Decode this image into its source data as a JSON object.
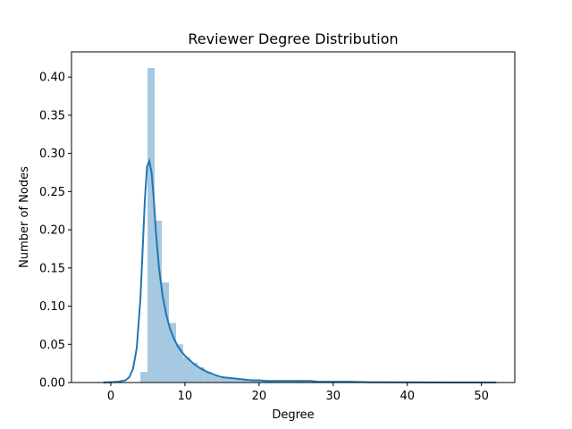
{
  "chart_data": {
    "type": "bar",
    "title": "Reviewer Degree Distribution",
    "xlabel": "Degree",
    "ylabel": "Number of Nodes",
    "xlim": [
      -5.3,
      54.5
    ],
    "ylim": [
      0,
      0.433
    ],
    "x_ticks": [
      0,
      10,
      20,
      30,
      40,
      50
    ],
    "y_ticks": [
      0.0,
      0.05,
      0.1,
      0.15,
      0.2,
      0.25,
      0.3,
      0.35,
      0.4
    ],
    "x_tick_labels": [
      "0",
      "10",
      "20",
      "30",
      "40",
      "50"
    ],
    "y_tick_labels": [
      "0.00",
      "0.05",
      "0.10",
      "0.15",
      "0.20",
      "0.25",
      "0.30",
      "0.35",
      "0.40"
    ],
    "grid": false,
    "legend": "none",
    "histogram": {
      "bin_edges": [
        4.0,
        4.96,
        5.92,
        6.88,
        7.84,
        8.8,
        9.76,
        10.72,
        11.68,
        12.64,
        13.6,
        14.56,
        15.52,
        16.48,
        17.44,
        18.4,
        19.36,
        20.32,
        21.28,
        22.24,
        23.2,
        24.16,
        25.12,
        26.08,
        27.04,
        28.0
      ],
      "densities": [
        0.014,
        0.412,
        0.212,
        0.131,
        0.078,
        0.05,
        0.033,
        0.026,
        0.02,
        0.014,
        0.009,
        0.006,
        0.005,
        0.004,
        0.003,
        0.002,
        0.002,
        0.003,
        0.002,
        0.001,
        0.001,
        0.001,
        0.002,
        0.001,
        0.001
      ],
      "color": "#a6c8e0"
    },
    "kde": {
      "x": [
        -1,
        0,
        1,
        2,
        2.5,
        3,
        3.5,
        4,
        4.3,
        4.6,
        4.9,
        5.2,
        5.5,
        5.8,
        6.1,
        6.5,
        7,
        7.5,
        8,
        8.5,
        9,
        9.5,
        10,
        11,
        12,
        13,
        14,
        15,
        16,
        17,
        18,
        19,
        20,
        21,
        22,
        23,
        24,
        25,
        26,
        27,
        28,
        29,
        30,
        32,
        35,
        40,
        45,
        50,
        52
      ],
      "y": [
        0.0,
        0.0005,
        0.001,
        0.003,
        0.007,
        0.018,
        0.045,
        0.11,
        0.175,
        0.24,
        0.283,
        0.29,
        0.275,
        0.24,
        0.195,
        0.15,
        0.113,
        0.088,
        0.07,
        0.058,
        0.048,
        0.041,
        0.035,
        0.026,
        0.019,
        0.014,
        0.01,
        0.007,
        0.006,
        0.005,
        0.004,
        0.003,
        0.003,
        0.002,
        0.002,
        0.002,
        0.002,
        0.002,
        0.002,
        0.002,
        0.001,
        0.001,
        0.001,
        0.001,
        0.0005,
        0.0003,
        0.0002,
        0.0001,
        0.0001
      ],
      "color": "#1f77b4"
    }
  }
}
